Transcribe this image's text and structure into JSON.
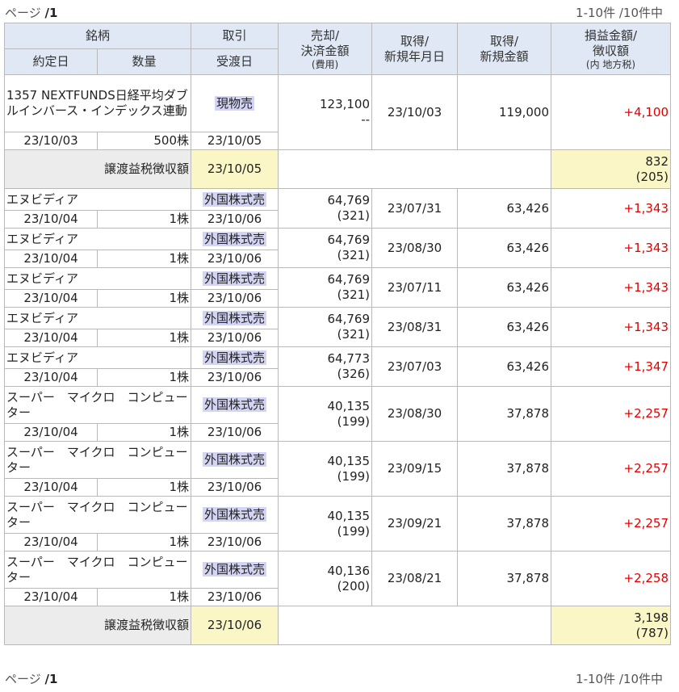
{
  "pager": {
    "label": "ページ",
    "page": "/1",
    "range": "1-10件 /10件中"
  },
  "headers": {
    "row1": [
      "銘柄",
      "取引",
      "売却/\n決済金額",
      "取得/\n新規年月日",
      "取得/\n新規金額",
      "損益金額/\n徴収額"
    ],
    "fee_note": "(費用)",
    "tax_note": "(内 地方税)",
    "row2": [
      "約定日",
      "数量",
      "受渡日"
    ]
  },
  "rows": [
    {
      "name": "1357 NEXTFUNDS日経平均ダブルインバース・インデックス連動",
      "trade": "現物売",
      "sale_amount": "123,100",
      "fee": "--",
      "acq_date": "23/10/03",
      "acq_amount": "119,000",
      "pl": "+4,100",
      "exec_date": "23/10/03",
      "qty": "500株",
      "settle_date": "23/10/05"
    },
    {
      "summary": true,
      "label": "譲渡益税徴収額",
      "date": "23/10/05",
      "amount": "832",
      "local_tax": "(205)"
    },
    {
      "name": "エヌビディア",
      "trade": "外国株式売",
      "sale_amount": "64,769",
      "fee": "(321)",
      "acq_date": "23/07/31",
      "acq_amount": "63,426",
      "pl": "+1,343",
      "exec_date": "23/10/04",
      "qty": "1株",
      "settle_date": "23/10/06"
    },
    {
      "name": "エヌビディア",
      "trade": "外国株式売",
      "sale_amount": "64,769",
      "fee": "(321)",
      "acq_date": "23/08/30",
      "acq_amount": "63,426",
      "pl": "+1,343",
      "exec_date": "23/10/04",
      "qty": "1株",
      "settle_date": "23/10/06"
    },
    {
      "name": "エヌビディア",
      "trade": "外国株式売",
      "sale_amount": "64,769",
      "fee": "(321)",
      "acq_date": "23/07/11",
      "acq_amount": "63,426",
      "pl": "+1,343",
      "exec_date": "23/10/04",
      "qty": "1株",
      "settle_date": "23/10/06"
    },
    {
      "name": "エヌビディア",
      "trade": "外国株式売",
      "sale_amount": "64,769",
      "fee": "(321)",
      "acq_date": "23/08/31",
      "acq_amount": "63,426",
      "pl": "+1,343",
      "exec_date": "23/10/04",
      "qty": "1株",
      "settle_date": "23/10/06"
    },
    {
      "name": "エヌビディア",
      "trade": "外国株式売",
      "sale_amount": "64,773",
      "fee": "(326)",
      "acq_date": "23/07/03",
      "acq_amount": "63,426",
      "pl": "+1,347",
      "exec_date": "23/10/04",
      "qty": "1株",
      "settle_date": "23/10/06"
    },
    {
      "name": "スーパー　マイクロ　コンピューター",
      "trade": "外国株式売",
      "sale_amount": "40,135",
      "fee": "(199)",
      "acq_date": "23/08/30",
      "acq_amount": "37,878",
      "pl": "+2,257",
      "exec_date": "23/10/04",
      "qty": "1株",
      "settle_date": "23/10/06"
    },
    {
      "name": "スーパー　マイクロ　コンピューター",
      "trade": "外国株式売",
      "sale_amount": "40,135",
      "fee": "(199)",
      "acq_date": "23/09/15",
      "acq_amount": "37,878",
      "pl": "+2,257",
      "exec_date": "23/10/04",
      "qty": "1株",
      "settle_date": "23/10/06"
    },
    {
      "name": "スーパー　マイクロ　コンピューター",
      "trade": "外国株式売",
      "sale_amount": "40,135",
      "fee": "(199)",
      "acq_date": "23/09/21",
      "acq_amount": "37,878",
      "pl": "+2,257",
      "exec_date": "23/10/04",
      "qty": "1株",
      "settle_date": "23/10/06"
    },
    {
      "name": "スーパー　マイクロ　コンピューター",
      "trade": "外国株式売",
      "sale_amount": "40,136",
      "fee": "(200)",
      "acq_date": "23/08/21",
      "acq_amount": "37,878",
      "pl": "+2,258",
      "exec_date": "23/10/04",
      "qty": "1株",
      "settle_date": "23/10/06"
    },
    {
      "summary": true,
      "label": "譲渡益税徴収額",
      "date": "23/10/06",
      "amount": "3,198",
      "local_tax": "(787)"
    }
  ]
}
